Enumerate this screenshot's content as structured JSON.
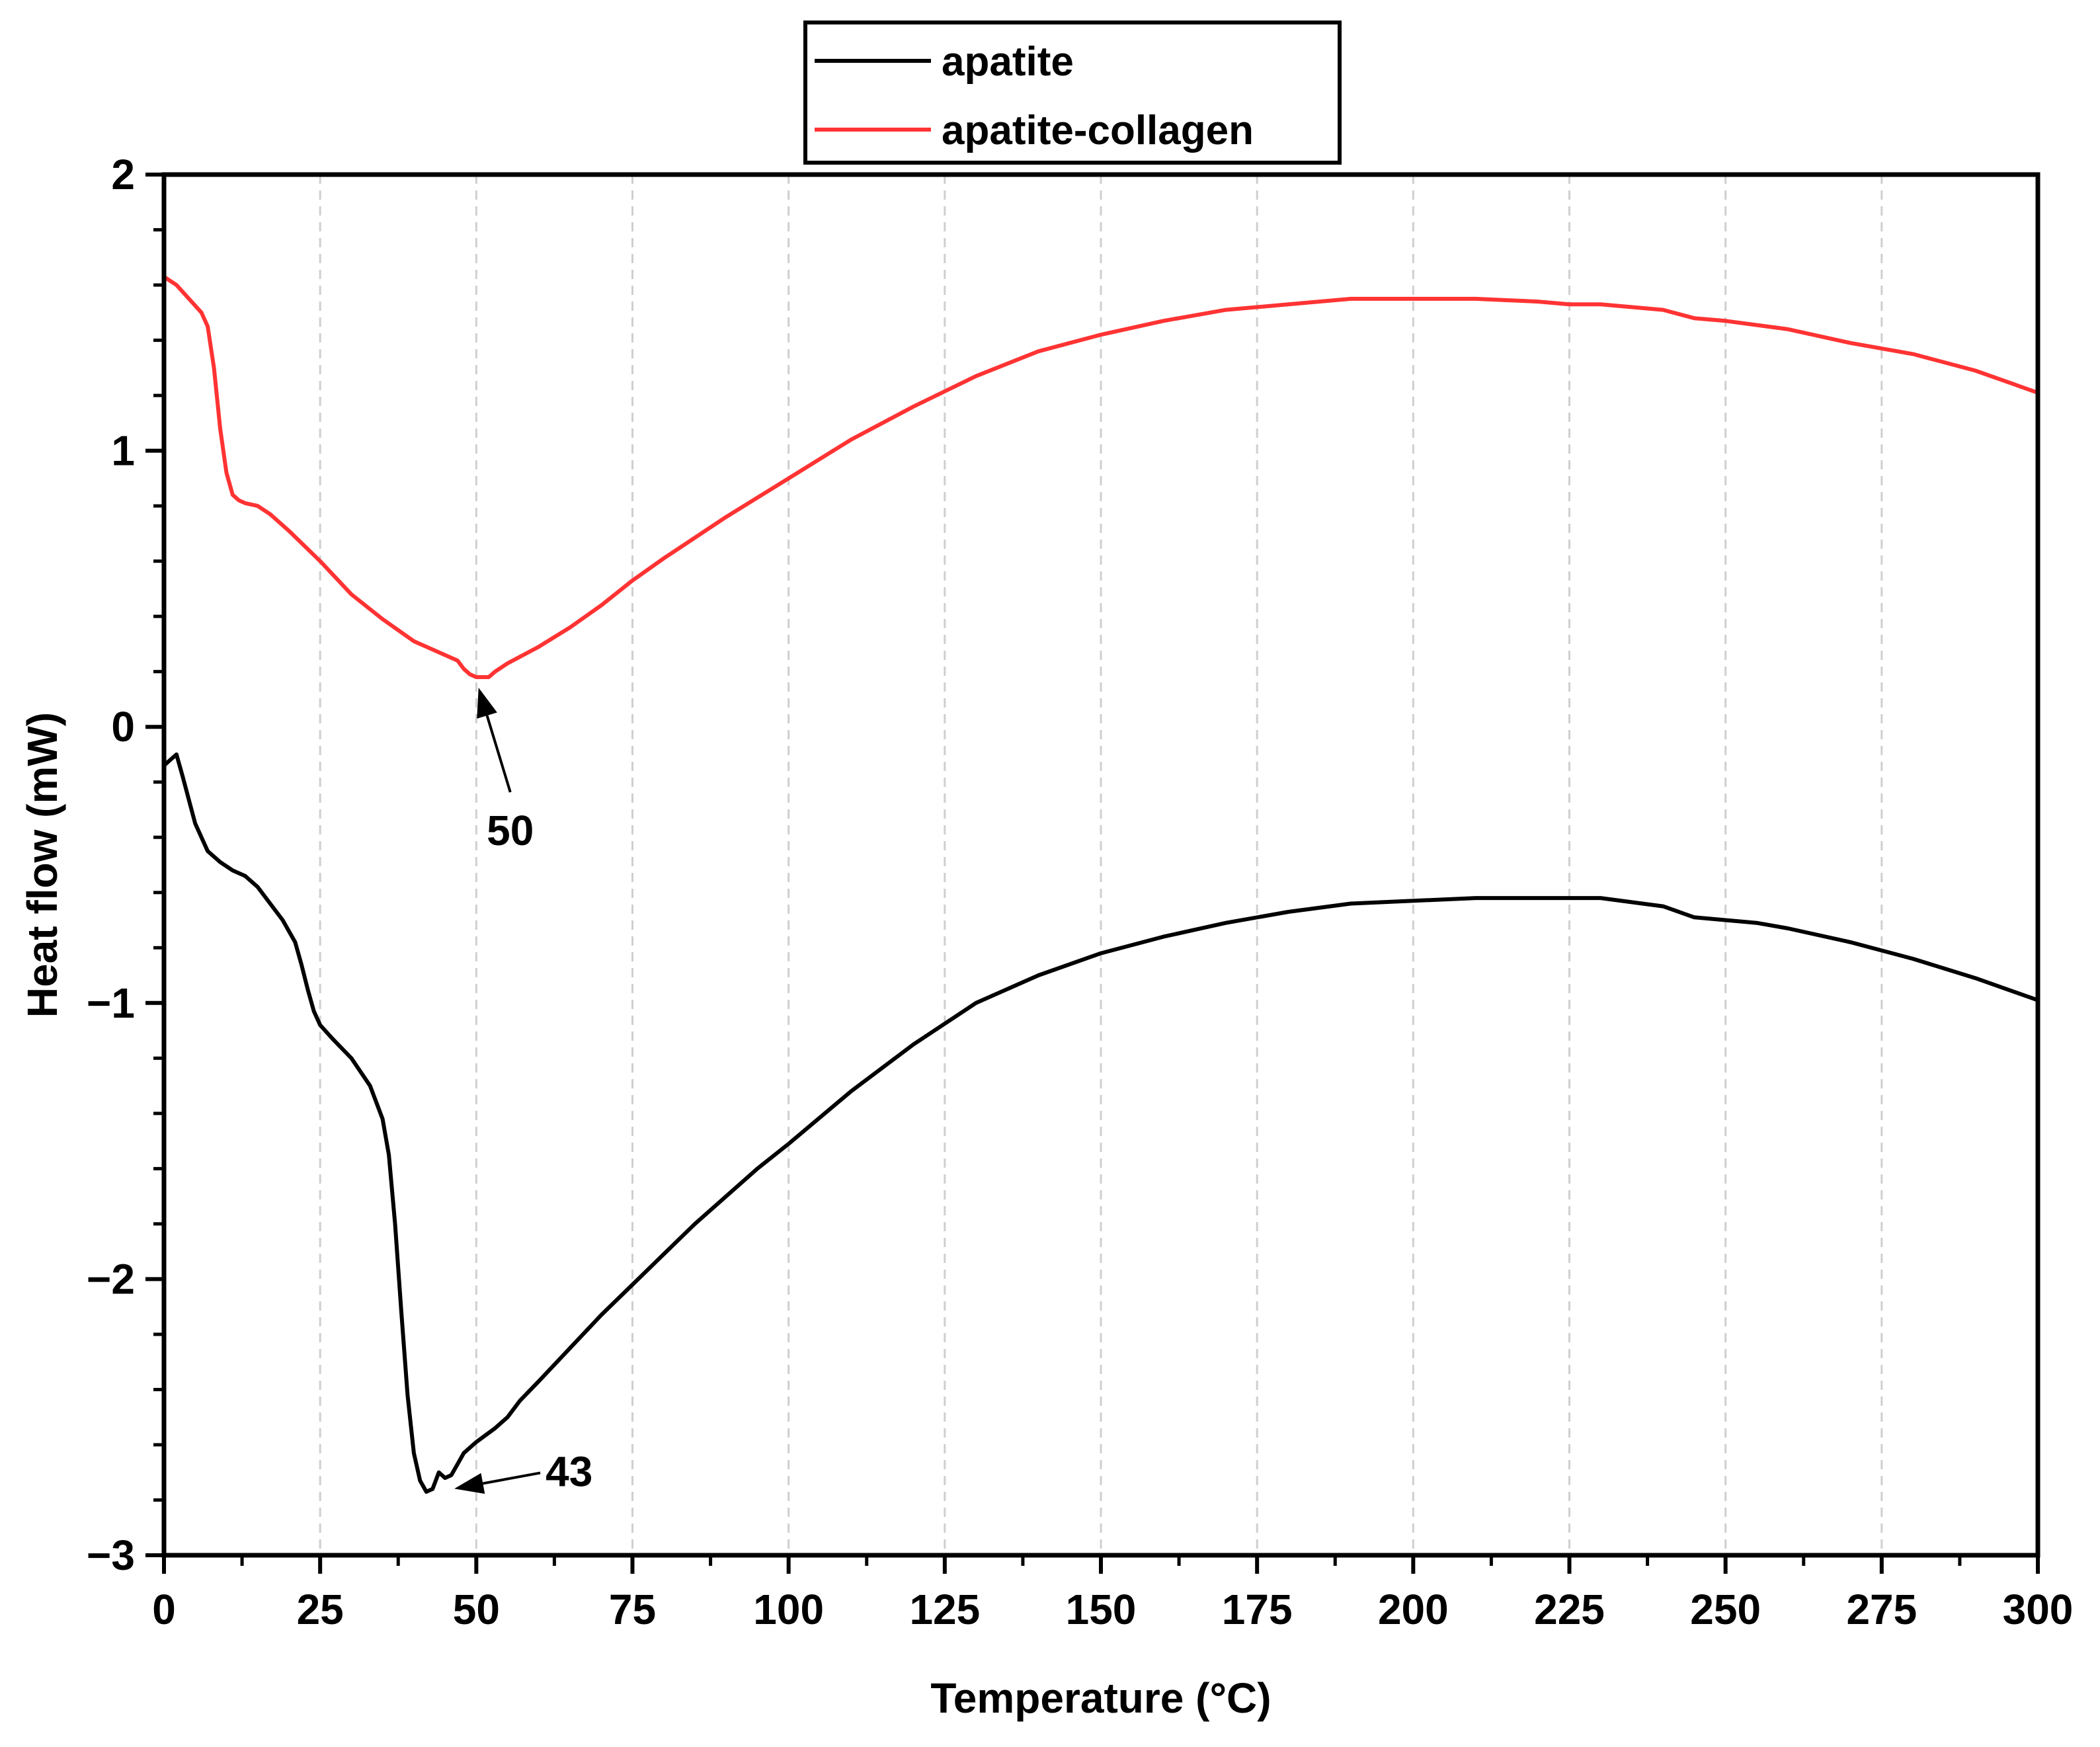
{
  "chart_data": {
    "type": "line",
    "xlabel": "Temperature (°C)",
    "ylabel": "Heat flow (mW)",
    "xlim": [
      0,
      300
    ],
    "ylim": [
      -3,
      2
    ],
    "x_ticks": [
      0,
      25,
      50,
      75,
      100,
      125,
      150,
      175,
      200,
      225,
      250,
      275,
      300
    ],
    "y_ticks": [
      -3,
      -2,
      -1,
      0,
      1,
      2
    ],
    "x_tick_labels": [
      "0",
      "25",
      "50",
      "75",
      "100",
      "125",
      "150",
      "175",
      "200",
      "225",
      "250",
      "275",
      "300"
    ],
    "y_tick_labels": [
      "−3",
      "−2",
      "−1",
      "0",
      "1",
      "2"
    ],
    "grid": "vertical dashed",
    "legend_position": "top-center",
    "series": [
      {
        "name": "apatite",
        "color": "#000000",
        "x": [
          0,
          1,
          2,
          3,
          5,
          7,
          9,
          11,
          13,
          15,
          17,
          19,
          21,
          22,
          23,
          24,
          25,
          27,
          30,
          33,
          35,
          36,
          37,
          38,
          39,
          40,
          41,
          42,
          43,
          44,
          45,
          46,
          47,
          48,
          50,
          53,
          55,
          57,
          60,
          65,
          70,
          75,
          80,
          85,
          90,
          95,
          100,
          110,
          120,
          130,
          140,
          150,
          160,
          170,
          180,
          190,
          200,
          210,
          220,
          230,
          240,
          245,
          250,
          255,
          260,
          270,
          280,
          290,
          300
        ],
        "y": [
          -0.14,
          -0.12,
          -0.1,
          -0.18,
          -0.35,
          -0.45,
          -0.49,
          -0.52,
          -0.54,
          -0.58,
          -0.64,
          -0.7,
          -0.78,
          -0.86,
          -0.95,
          -1.03,
          -1.08,
          -1.13,
          -1.2,
          -1.3,
          -1.42,
          -1.55,
          -1.8,
          -2.12,
          -2.42,
          -2.63,
          -2.73,
          -2.77,
          -2.76,
          -2.7,
          -2.72,
          -2.71,
          -2.67,
          -2.63,
          -2.59,
          -2.54,
          -2.5,
          -2.44,
          -2.37,
          -2.25,
          -2.13,
          -2.02,
          -1.91,
          -1.8,
          -1.7,
          -1.6,
          -1.51,
          -1.32,
          -1.15,
          -1.0,
          -0.9,
          -0.82,
          -0.76,
          -0.71,
          -0.67,
          -0.64,
          -0.63,
          -0.62,
          -0.62,
          -0.62,
          -0.65,
          -0.69,
          -0.7,
          -0.71,
          -0.73,
          -0.78,
          -0.84,
          -0.91,
          -0.99
        ]
      },
      {
        "name": "apatite-collagen",
        "color": "#ff3333",
        "x": [
          0,
          2,
          4,
          6,
          7,
          8,
          9,
          10,
          11,
          12,
          13,
          15,
          17,
          20,
          25,
          30,
          35,
          40,
          45,
          47,
          48,
          49,
          50,
          51,
          52,
          53,
          55,
          60,
          65,
          70,
          75,
          80,
          90,
          100,
          110,
          120,
          130,
          140,
          150,
          160,
          170,
          180,
          190,
          200,
          210,
          220,
          225,
          230,
          240,
          245,
          250,
          260,
          270,
          280,
          290,
          300
        ],
        "y": [
          1.63,
          1.6,
          1.55,
          1.5,
          1.45,
          1.3,
          1.08,
          0.92,
          0.84,
          0.82,
          0.81,
          0.8,
          0.77,
          0.71,
          0.6,
          0.48,
          0.39,
          0.31,
          0.26,
          0.24,
          0.21,
          0.19,
          0.18,
          0.18,
          0.18,
          0.2,
          0.23,
          0.29,
          0.36,
          0.44,
          0.53,
          0.61,
          0.76,
          0.9,
          1.04,
          1.16,
          1.27,
          1.36,
          1.42,
          1.47,
          1.51,
          1.53,
          1.55,
          1.55,
          1.55,
          1.54,
          1.53,
          1.53,
          1.51,
          1.48,
          1.47,
          1.44,
          1.39,
          1.35,
          1.29,
          1.21
        ]
      }
    ],
    "annotations": [
      {
        "text": "50",
        "series": "apatite-collagen",
        "x": 51,
        "y": 0.18
      },
      {
        "text": "43",
        "series": "apatite",
        "x": 45,
        "y": -2.74
      }
    ]
  }
}
